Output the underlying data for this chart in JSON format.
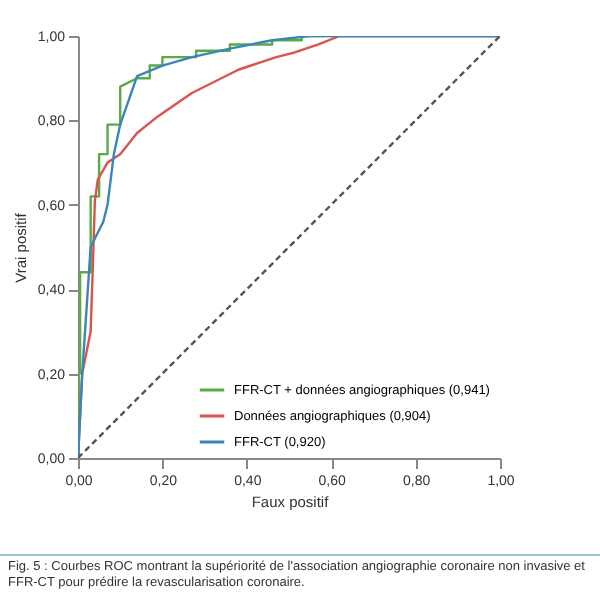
{
  "chart_data": {
    "type": "line",
    "xlabel": "Faux positif",
    "ylabel": "Vrai positif",
    "xlim": [
      0,
      1
    ],
    "ylim": [
      0,
      1
    ],
    "xticks": [
      {
        "value": 0,
        "label": "0,00"
      },
      {
        "value": 0.2,
        "label": "0,20"
      },
      {
        "value": 0.4,
        "label": "0,40"
      },
      {
        "value": 0.6,
        "label": "0,60"
      },
      {
        "value": 0.8,
        "label": "0,80"
      },
      {
        "value": 1,
        "label": "1,00"
      }
    ],
    "yticks": [
      {
        "value": 0,
        "label": "0,00"
      },
      {
        "value": 0.2,
        "label": "0,20"
      },
      {
        "value": 0.4,
        "label": "0,40"
      },
      {
        "value": 0.6,
        "label": "0,60"
      },
      {
        "value": 0.8,
        "label": "0,80"
      },
      {
        "value": 1,
        "label": "1,00"
      }
    ],
    "legend": "bottom right",
    "grid": false,
    "marker": "none",
    "series": [
      {
        "name": "FFR-CT + données angiographiques (0,941)",
        "color": "#5aaa46",
        "x": [
          0,
          0,
          0.005,
          0.005,
          0.03,
          0.03,
          0.05,
          0.05,
          0.07,
          0.07,
          0.1,
          0.1,
          0.14,
          0.17,
          0.17,
          0.2,
          0.2,
          0.28,
          0.28,
          0.36,
          0.36,
          0.46,
          0.46,
          0.53,
          0.53,
          1
        ],
        "values": [
          0,
          0.2,
          0.2,
          0.44,
          0.44,
          0.62,
          0.62,
          0.72,
          0.72,
          0.79,
          0.79,
          0.88,
          0.9,
          0.9,
          0.93,
          0.93,
          0.95,
          0.95,
          0.965,
          0.965,
          0.98,
          0.98,
          0.99,
          0.99,
          1,
          1
        ]
      },
      {
        "name": "Données angiographiques (0,904)",
        "color": "#d9534f",
        "x": [
          0,
          0.01,
          0.03,
          0.035,
          0.04,
          0.047,
          0.07,
          0.1,
          0.14,
          0.19,
          0.27,
          0.38,
          0.47,
          0.51,
          0.57,
          0.62,
          1
        ],
        "values": [
          0,
          0.2,
          0.3,
          0.45,
          0.61,
          0.66,
          0.7,
          0.72,
          0.77,
          0.81,
          0.865,
          0.92,
          0.95,
          0.96,
          0.98,
          1,
          1
        ]
      },
      {
        "name": "FFR-CT (0,920)",
        "color": "#3a86b8",
        "x": [
          0,
          0.005,
          0.01,
          0.03,
          0.06,
          0.07,
          0.085,
          0.1,
          0.14,
          0.2,
          0.27,
          0.36,
          0.46,
          0.55,
          1
        ],
        "values": [
          0,
          0.1,
          0.2,
          0.5,
          0.56,
          0.6,
          0.72,
          0.79,
          0.905,
          0.93,
          0.95,
          0.97,
          0.99,
          1,
          1
        ]
      },
      {
        "color": "#555555",
        "line_style": "dashed",
        "x": [
          0,
          1
        ],
        "values": [
          0,
          1
        ]
      }
    ],
    "annotations": [
      "Fig. 5 : Courbes ROC montrant la supériorité de l'association angiographie coronaire non invasive et FFR-CT pour prédire la revascularisation coronaire."
    ]
  }
}
